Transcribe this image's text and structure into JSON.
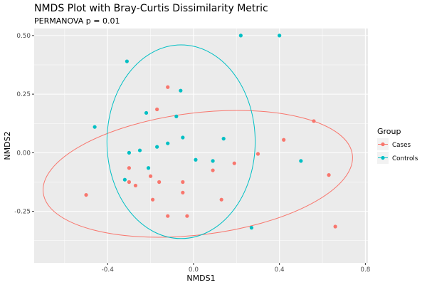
{
  "chart_data": {
    "type": "scatter",
    "title": "NMDS Plot with Bray-Curtis Dissimilarity Metric",
    "subtitle": "PERMANOVA p = 0.01",
    "xlabel": "NMDS1",
    "ylabel": "NMDS2",
    "xlim": [
      -0.742,
      0.812
    ],
    "ylim": [
      -0.47,
      0.53
    ],
    "x_ticks": [
      -0.4,
      0.0,
      0.4,
      0.8
    ],
    "x_tick_labels": [
      "-0.4",
      "0.0",
      "0.4",
      "0.8"
    ],
    "y_ticks": [
      -0.25,
      0.0,
      0.25,
      0.5
    ],
    "y_tick_labels": [
      "-0.25",
      "0.00",
      "0.25",
      "0.50"
    ],
    "grid": true,
    "background": "#ebebeb",
    "legend": {
      "title": "Group",
      "position": "right"
    },
    "series": [
      {
        "name": "Cases",
        "color": "#f8766d",
        "points": [
          [
            -0.12,
            0.28
          ],
          [
            -0.17,
            0.185
          ],
          [
            -0.3,
            -0.065
          ],
          [
            -0.5,
            -0.18
          ],
          [
            -0.3,
            -0.125
          ],
          [
            -0.27,
            -0.14
          ],
          [
            -0.2,
            -0.1
          ],
          [
            -0.16,
            -0.125
          ],
          [
            -0.19,
            -0.2
          ],
          [
            -0.12,
            -0.27
          ],
          [
            -0.05,
            -0.17
          ],
          [
            -0.05,
            -0.125
          ],
          [
            -0.03,
            -0.27
          ],
          [
            0.09,
            -0.075
          ],
          [
            0.13,
            -0.2
          ],
          [
            0.19,
            -0.045
          ],
          [
            0.3,
            -0.005
          ],
          [
            0.42,
            0.055
          ],
          [
            0.56,
            0.135
          ],
          [
            0.63,
            -0.095
          ],
          [
            0.66,
            -0.315
          ]
        ]
      },
      {
        "name": "Controls",
        "color": "#00bfc4",
        "points": [
          [
            0.22,
            0.5
          ],
          [
            0.4,
            0.5
          ],
          [
            -0.31,
            0.39
          ],
          [
            -0.06,
            0.265
          ],
          [
            -0.22,
            0.17
          ],
          [
            -0.08,
            0.155
          ],
          [
            -0.46,
            0.11
          ],
          [
            -0.17,
            0.025
          ],
          [
            -0.05,
            0.065
          ],
          [
            -0.12,
            0.04
          ],
          [
            -0.25,
            0.01
          ],
          [
            -0.3,
            0.0
          ],
          [
            -0.21,
            -0.065
          ],
          [
            0.01,
            -0.03
          ],
          [
            0.09,
            -0.035
          ],
          [
            0.14,
            0.06
          ],
          [
            -0.32,
            -0.115
          ],
          [
            0.5,
            -0.035
          ],
          [
            0.27,
            -0.32
          ]
        ]
      }
    ],
    "ellipses": [
      {
        "group": "Cases",
        "cx": 0.02,
        "cy": -0.09,
        "rx": 0.725,
        "ry": 0.26,
        "angle_deg": 7
      },
      {
        "group": "Controls",
        "cx": -0.058,
        "cy": 0.047,
        "rx": 0.345,
        "ry": 0.413,
        "angle_deg": 0
      }
    ]
  }
}
